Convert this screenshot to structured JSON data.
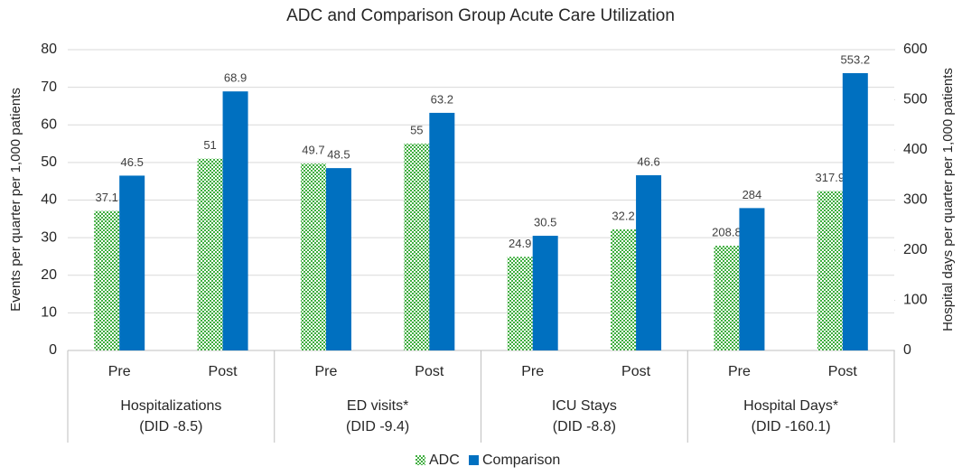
{
  "chart_data": {
    "type": "bar",
    "title": "ADC and Comparison Group Acute Care Utilization",
    "y_label": "Events per quarter per 1,000 patients",
    "y2_label": "Hospital days per quarter per 1,000 patients",
    "groups": [
      {
        "name": "Hospitalizations",
        "note": "(DID -8.5)",
        "categories": [
          "Pre",
          "Post"
        ],
        "axis": "y"
      },
      {
        "name": "ED visits*",
        "note": "(DID -9.4)",
        "categories": [
          "Pre",
          "Post"
        ],
        "axis": "y"
      },
      {
        "name": "ICU Stays",
        "note": "(DID -8.8)",
        "categories": [
          "Pre",
          "Post"
        ],
        "axis": "y"
      },
      {
        "name": "Hospital Days*",
        "note": "(DID -160.1)",
        "categories": [
          "Pre",
          "Post"
        ],
        "axis": "y2"
      }
    ],
    "series": [
      {
        "name": "ADC",
        "color": "#3fae3f",
        "pattern": "checker",
        "values": [
          37.1,
          51,
          49.7,
          55,
          24.9,
          32.2,
          208.8,
          317.9
        ]
      },
      {
        "name": "Comparison",
        "color": "#0070c0",
        "values": [
          46.5,
          68.9,
          48.5,
          63.2,
          30.5,
          46.6,
          284,
          553.2
        ]
      }
    ],
    "ylim": [
      0,
      80
    ],
    "yticks": [
      0,
      10,
      20,
      30,
      40,
      50,
      60,
      70,
      80
    ],
    "y2lim": [
      0,
      600
    ],
    "y2ticks": [
      0,
      100,
      200,
      300,
      400,
      500,
      600
    ],
    "grid": true,
    "legend": "bottom"
  }
}
